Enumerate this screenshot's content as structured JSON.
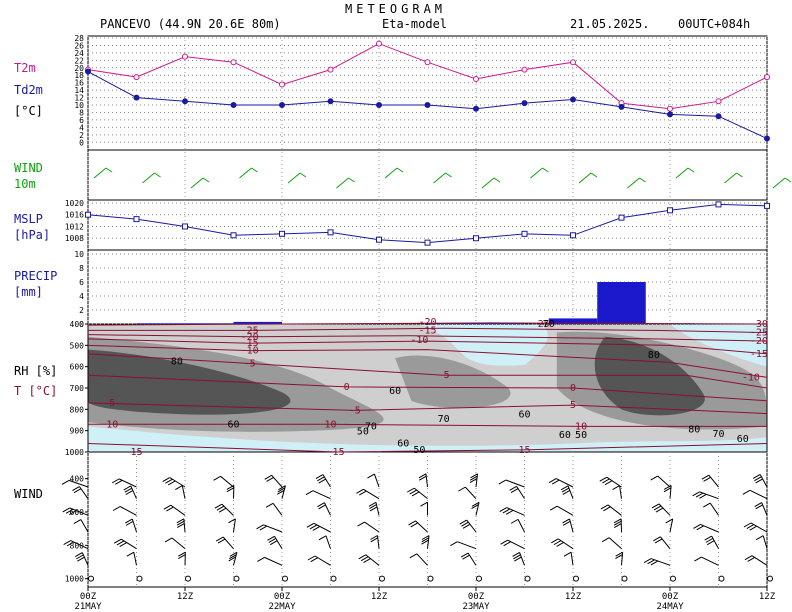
{
  "header": {
    "title": "METEOGRAM",
    "station": "PANCEVO (44.9N 20.6E  80m)",
    "model": "Eta-model",
    "date": "21.05.2025.",
    "run": "00UTC+084h"
  },
  "colors": {
    "t2m": "#d0188c",
    "td2m": "#1a1aa0",
    "wind10m": "#10a010",
    "mslp": "#1a1aa0",
    "precip": "#1a1acc",
    "temp_isotherm": "#8a1030",
    "rh_dark": "#555555",
    "rh_mid": "#9a9a9a",
    "rh_light": "#cfcfcf",
    "rh_dry": "#d0f0f8"
  },
  "panels": {
    "temp": {
      "label1": "T2m",
      "label2": "Td2m",
      "label3": "[°C]"
    },
    "wind10m": {
      "label1": "WIND",
      "label2": "10m"
    },
    "mslp": {
      "label1": "MSLP",
      "label2": "[hPa]"
    },
    "precip": {
      "label1": "PRECIP",
      "label2": "[mm]"
    },
    "profile": {
      "label1": "RH [%]",
      "label2": "T [°C]"
    },
    "windprof": {
      "label1": "WIND"
    }
  },
  "time_axis": {
    "ticks": [
      {
        "h": 0,
        "label": "00Z",
        "date": "21MAY"
      },
      {
        "h": 12,
        "label": "12Z",
        "date": ""
      },
      {
        "h": 24,
        "label": "00Z",
        "date": "22MAY"
      },
      {
        "h": 36,
        "label": "12Z",
        "date": ""
      },
      {
        "h": 48,
        "label": "00Z",
        "date": "23MAY"
      },
      {
        "h": 60,
        "label": "12Z",
        "date": ""
      },
      {
        "h": 72,
        "label": "00Z",
        "date": "24MAY"
      },
      {
        "h": 84,
        "label": "12Z",
        "date": ""
      }
    ]
  },
  "chart_data": [
    {
      "type": "line",
      "panel": "temperature",
      "x_hours": [
        0,
        6,
        12,
        18,
        24,
        30,
        36,
        42,
        48,
        54,
        60,
        66,
        72,
        78,
        84
      ],
      "yticks": [
        0,
        2,
        4,
        6,
        8,
        10,
        12,
        14,
        16,
        18,
        20,
        22,
        24,
        26,
        28
      ],
      "ylim": [
        -1,
        28
      ],
      "series": [
        {
          "name": "T2m",
          "values": [
            19.5,
            17.5,
            23,
            21.5,
            15.5,
            19.5,
            26.5,
            21.5,
            17,
            19.5,
            21.5,
            10.5,
            9,
            11,
            17.5
          ]
        },
        {
          "name": "Td2m",
          "values": [
            19,
            12,
            11,
            10,
            10,
            11,
            10,
            10,
            9,
            10.5,
            11.5,
            9.5,
            7.5,
            7,
            1
          ]
        }
      ]
    },
    {
      "type": "line",
      "panel": "mslp",
      "x_hours": [
        0,
        6,
        12,
        18,
        24,
        30,
        36,
        42,
        48,
        54,
        60,
        66,
        72,
        78,
        84
      ],
      "yticks": [
        1008,
        1012,
        1016,
        1020
      ],
      "ylim": [
        1004,
        1021
      ],
      "series": [
        {
          "name": "MSLP",
          "values": [
            1016,
            1014.5,
            1012,
            1009,
            1009.5,
            1010,
            1007.5,
            1006.5,
            1008,
            1009.5,
            1009,
            1015,
            1017.5,
            1019.5,
            1019
          ]
        }
      ]
    },
    {
      "type": "bar",
      "panel": "precip",
      "yticks": [
        0,
        2,
        4,
        6,
        8,
        10
      ],
      "ylim": [
        0,
        10
      ],
      "bars": [
        {
          "from": 6,
          "to": 12,
          "value": 0.1
        },
        {
          "from": 12,
          "to": 18,
          "value": 0.1
        },
        {
          "from": 18,
          "to": 24,
          "value": 0.3
        },
        {
          "from": 42,
          "to": 48,
          "value": 0.1
        },
        {
          "from": 48,
          "to": 54,
          "value": 0.2
        },
        {
          "from": 57,
          "to": 63,
          "value": 0.8
        },
        {
          "from": 63,
          "to": 69,
          "value": 6.0
        },
        {
          "from": 69,
          "to": 75,
          "value": 0.1
        }
      ]
    },
    {
      "type": "heatmap",
      "panel": "profile",
      "yticks": [
        400,
        500,
        600,
        700,
        800,
        900,
        1000
      ],
      "ylim": [
        400,
        1000
      ],
      "temperature_labels": [
        {
          "h": 20,
          "p": 430,
          "text": "-25"
        },
        {
          "h": 20,
          "p": 460,
          "text": "-20"
        },
        {
          "h": 20,
          "p": 490,
          "text": "-15"
        },
        {
          "h": 20,
          "p": 525,
          "text": "-10"
        },
        {
          "h": 20,
          "p": 585,
          "text": "-5"
        },
        {
          "h": 32,
          "p": 695,
          "text": "0"
        },
        {
          "h": 33,
          "p": 805,
          "text": "-5"
        },
        {
          "h": 3,
          "p": 770,
          "text": "5"
        },
        {
          "h": 3,
          "p": 870,
          "text": "10"
        },
        {
          "h": 6,
          "p": 1000,
          "text": "15"
        },
        {
          "h": 42,
          "p": 390,
          "text": "-20"
        },
        {
          "h": 42,
          "p": 430,
          "text": "-15"
        },
        {
          "h": 41,
          "p": 475,
          "text": "-10"
        },
        {
          "h": 44,
          "p": 640,
          "text": "-5"
        },
        {
          "h": 56,
          "p": 400,
          "text": "-25"
        },
        {
          "h": 60,
          "p": 700,
          "text": "0"
        },
        {
          "h": 60,
          "p": 780,
          "text": "5"
        },
        {
          "h": 61,
          "p": 880,
          "text": "10"
        },
        {
          "h": 54,
          "p": 990,
          "text": "15"
        },
        {
          "h": 83,
          "p": 400,
          "text": "-30"
        },
        {
          "h": 83,
          "p": 440,
          "text": "-25"
        },
        {
          "h": 83,
          "p": 480,
          "text": "-20"
        },
        {
          "h": 83,
          "p": 540,
          "text": "-15"
        },
        {
          "h": 82,
          "p": 650,
          "text": "-10"
        },
        {
          "h": 30,
          "p": 870,
          "text": "10"
        },
        {
          "h": 31,
          "p": 1000,
          "text": "15"
        }
      ],
      "rh_labels": [
        {
          "h": 11,
          "p": 575,
          "text": "80"
        },
        {
          "h": 18,
          "p": 870,
          "text": "60"
        },
        {
          "h": 34,
          "p": 905,
          "text": "50"
        },
        {
          "h": 35,
          "p": 880,
          "text": "70"
        },
        {
          "h": 38,
          "p": 715,
          "text": "60"
        },
        {
          "h": 44,
          "p": 845,
          "text": "70"
        },
        {
          "h": 39,
          "p": 960,
          "text": "60"
        },
        {
          "h": 41,
          "p": 990,
          "text": "50"
        },
        {
          "h": 54,
          "p": 825,
          "text": "60"
        },
        {
          "h": 59,
          "p": 920,
          "text": "60"
        },
        {
          "h": 61,
          "p": 920,
          "text": "50"
        },
        {
          "h": 57,
          "p": 400,
          "text": "70"
        },
        {
          "h": 70,
          "p": 545,
          "text": "80"
        },
        {
          "h": 75,
          "p": 895,
          "text": "80"
        },
        {
          "h": 78,
          "p": 915,
          "text": "70"
        },
        {
          "h": 81,
          "p": 940,
          "text": "60"
        }
      ]
    }
  ]
}
